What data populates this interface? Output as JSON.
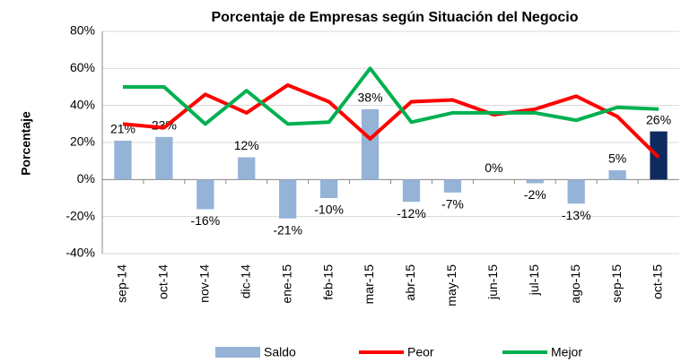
{
  "chart_data": {
    "type": "bar-line",
    "title": "Porcentaje de Empresas según Situación del Negocio",
    "y_label": "Porcentaje",
    "categories": [
      "sep-14",
      "oct-14",
      "nov-14",
      "dic-14",
      "ene-15",
      "feb-15",
      "mar-15",
      "abr-15",
      "may-15",
      "jun-15",
      "jul-15",
      "ago-15",
      "sep-15",
      "oct-15"
    ],
    "series": [
      {
        "name": "Saldo",
        "type": "bar",
        "color": "#95b3d7",
        "colors": [
          "#95b3d7",
          "#95b3d7",
          "#95b3d7",
          "#95b3d7",
          "#95b3d7",
          "#95b3d7",
          "#95b3d7",
          "#95b3d7",
          "#95b3d7",
          "#95b3d7",
          "#95b3d7",
          "#95b3d7",
          "#95b3d7",
          "#0f2a5e"
        ],
        "values": [
          21,
          23,
          -16,
          12,
          -21,
          -10,
          38,
          -12,
          -7,
          0,
          -2,
          -13,
          5,
          26
        ],
        "value_labels": [
          "21%",
          "23%",
          "-16%",
          "12%",
          "-21%",
          "-10%",
          "38%",
          "-12%",
          "-7%",
          "0%",
          "-2%",
          "-13%",
          "5%",
          "26%"
        ]
      },
      {
        "name": "Peor",
        "type": "line",
        "color": "#ff0000",
        "values": [
          30,
          28,
          46,
          36,
          51,
          42,
          22,
          42,
          43,
          35,
          38,
          45,
          34,
          12
        ]
      },
      {
        "name": "Mejor",
        "type": "line",
        "color": "#00b050",
        "values": [
          50,
          50,
          30,
          48,
          30,
          31,
          60,
          31,
          36,
          36,
          36,
          32,
          39,
          38
        ]
      }
    ],
    "ylim": [
      -40,
      80
    ],
    "yticks": [
      {
        "value": -40,
        "label": "-40%"
      },
      {
        "value": -20,
        "label": "-20%"
      },
      {
        "value": 0,
        "label": "0%"
      },
      {
        "value": 20,
        "label": "20%"
      },
      {
        "value": 40,
        "label": "40%"
      },
      {
        "value": 60,
        "label": "60%"
      },
      {
        "value": 80,
        "label": "80%"
      }
    ],
    "grid": true,
    "legend": "bottom"
  }
}
